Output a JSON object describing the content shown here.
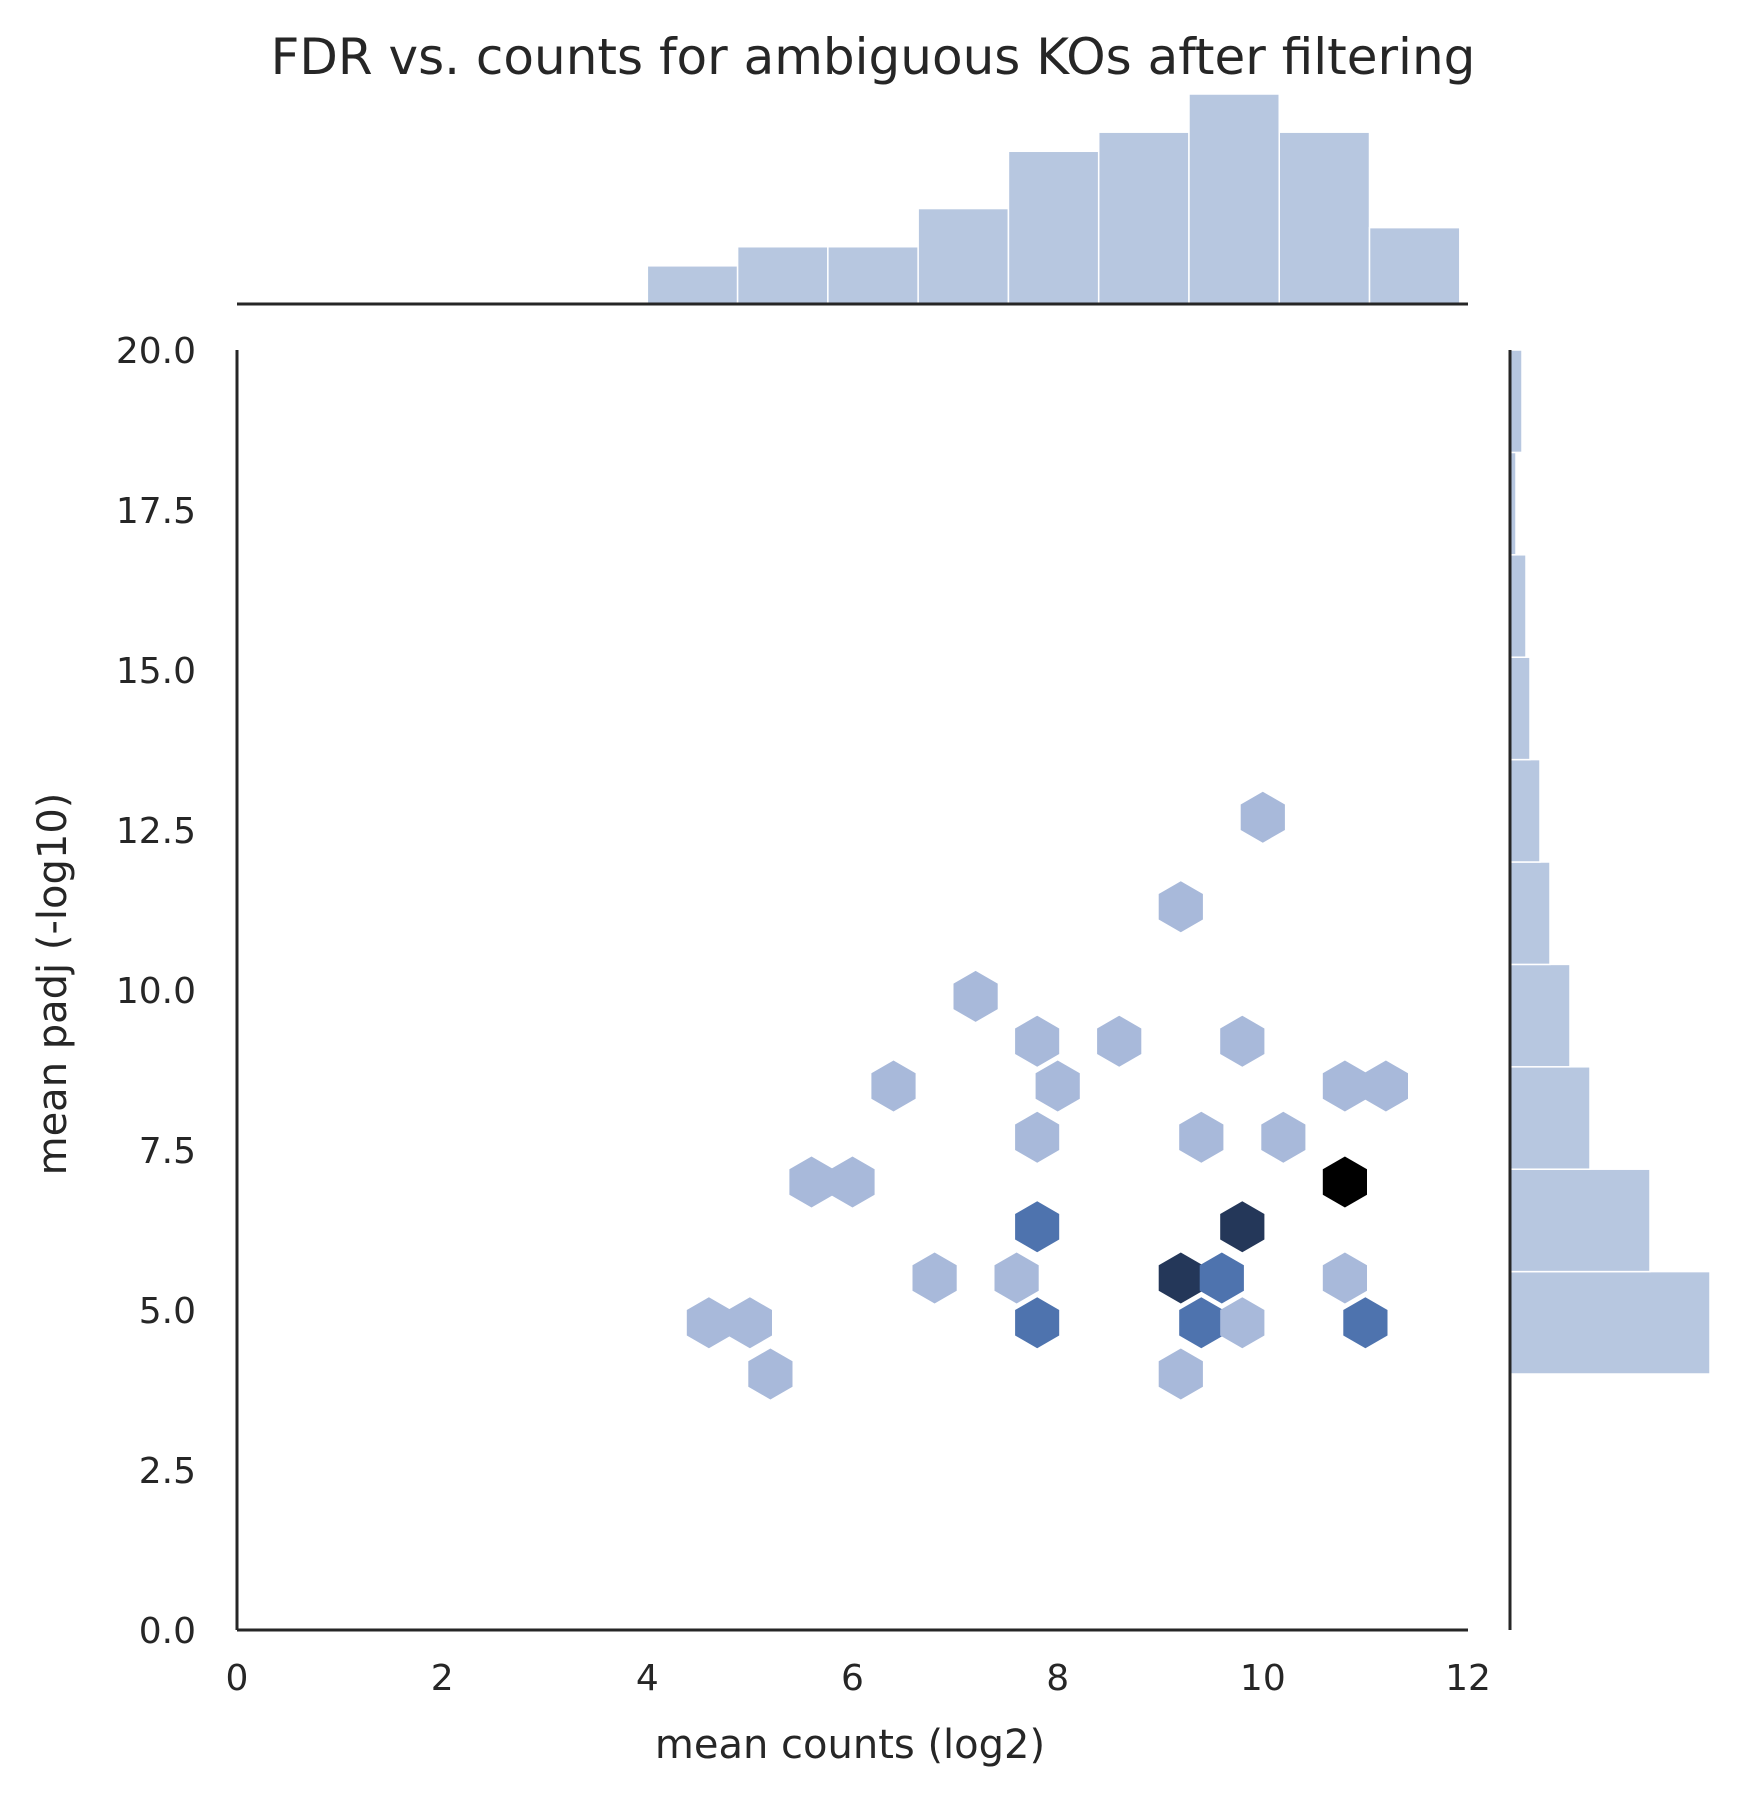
{
  "chart_data": {
    "type": "hexbin",
    "title": "FDR vs. counts for ambiguous KOs after filtering",
    "xlabel": "mean counts (log2)",
    "ylabel": "mean padj (-log10)",
    "xlim": [
      0,
      12
    ],
    "ylim": [
      0,
      20
    ],
    "x_ticks": [
      "0",
      "2",
      "4",
      "6",
      "8",
      "10",
      "12"
    ],
    "y_ticks": [
      "0.0",
      "2.5",
      "5.0",
      "7.5",
      "10.0",
      "12.5",
      "15.0",
      "17.5",
      "20.0"
    ],
    "grid": false,
    "hexbins": [
      {
        "x": 10.0,
        "y": 12.7,
        "count": 1
      },
      {
        "x": 9.2,
        "y": 11.3,
        "count": 1
      },
      {
        "x": 7.2,
        "y": 9.9,
        "count": 1
      },
      {
        "x": 7.8,
        "y": 9.2,
        "count": 1
      },
      {
        "x": 8.6,
        "y": 9.2,
        "count": 1
      },
      {
        "x": 9.8,
        "y": 9.2,
        "count": 1
      },
      {
        "x": 6.4,
        "y": 8.5,
        "count": 1
      },
      {
        "x": 8.0,
        "y": 8.5,
        "count": 1
      },
      {
        "x": 10.8,
        "y": 8.5,
        "count": 1
      },
      {
        "x": 11.2,
        "y": 8.5,
        "count": 1
      },
      {
        "x": 7.8,
        "y": 7.7,
        "count": 1
      },
      {
        "x": 9.4,
        "y": 7.7,
        "count": 1
      },
      {
        "x": 10.2,
        "y": 7.7,
        "count": 1
      },
      {
        "x": 5.6,
        "y": 7.0,
        "count": 1
      },
      {
        "x": 6.0,
        "y": 7.0,
        "count": 1
      },
      {
        "x": 10.8,
        "y": 7.0,
        "count": 4
      },
      {
        "x": 7.8,
        "y": 6.3,
        "count": 2
      },
      {
        "x": 9.8,
        "y": 6.3,
        "count": 3
      },
      {
        "x": 6.8,
        "y": 5.5,
        "count": 1
      },
      {
        "x": 7.6,
        "y": 5.5,
        "count": 1
      },
      {
        "x": 9.2,
        "y": 5.5,
        "count": 3
      },
      {
        "x": 9.6,
        "y": 5.5,
        "count": 2
      },
      {
        "x": 10.8,
        "y": 5.5,
        "count": 1
      },
      {
        "x": 4.6,
        "y": 4.8,
        "count": 1
      },
      {
        "x": 5.0,
        "y": 4.8,
        "count": 1
      },
      {
        "x": 7.8,
        "y": 4.8,
        "count": 2
      },
      {
        "x": 9.4,
        "y": 4.8,
        "count": 2
      },
      {
        "x": 9.8,
        "y": 4.8,
        "count": 1
      },
      {
        "x": 11.0,
        "y": 4.8,
        "count": 2
      },
      {
        "x": 5.2,
        "y": 4.0,
        "count": 1
      },
      {
        "x": 9.2,
        "y": 4.0,
        "count": 1
      }
    ],
    "x_marginal_histogram": {
      "bin_edges": [
        4.0,
        4.88,
        5.76,
        6.64,
        7.52,
        8.4,
        9.28,
        10.16,
        11.04,
        11.92
      ],
      "counts": [
        2,
        3,
        3,
        5,
        8,
        9,
        11,
        9,
        4
      ]
    },
    "y_marginal_histogram": {
      "bin_edges": [
        4.0,
        5.6,
        7.2,
        8.8,
        10.4,
        12.0,
        13.6,
        15.2,
        16.8,
        18.4,
        20.0
      ],
      "counts": [
        10,
        7,
        4,
        3,
        2,
        1.5,
        1,
        0.8,
        0.3,
        0.6
      ]
    },
    "colors": {
      "hex_1": "#a8b9da",
      "hex_2": "#4e73ae",
      "hex_3": "#243759",
      "hex_4": "#000000",
      "histogram": "#b7c7e0",
      "axis": "#262626"
    }
  }
}
